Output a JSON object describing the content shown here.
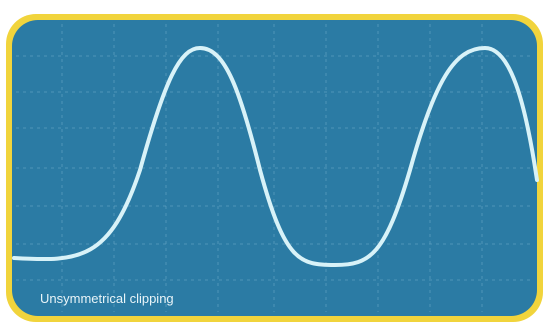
{
  "caption": "Unsymmetrical clipping"
}
